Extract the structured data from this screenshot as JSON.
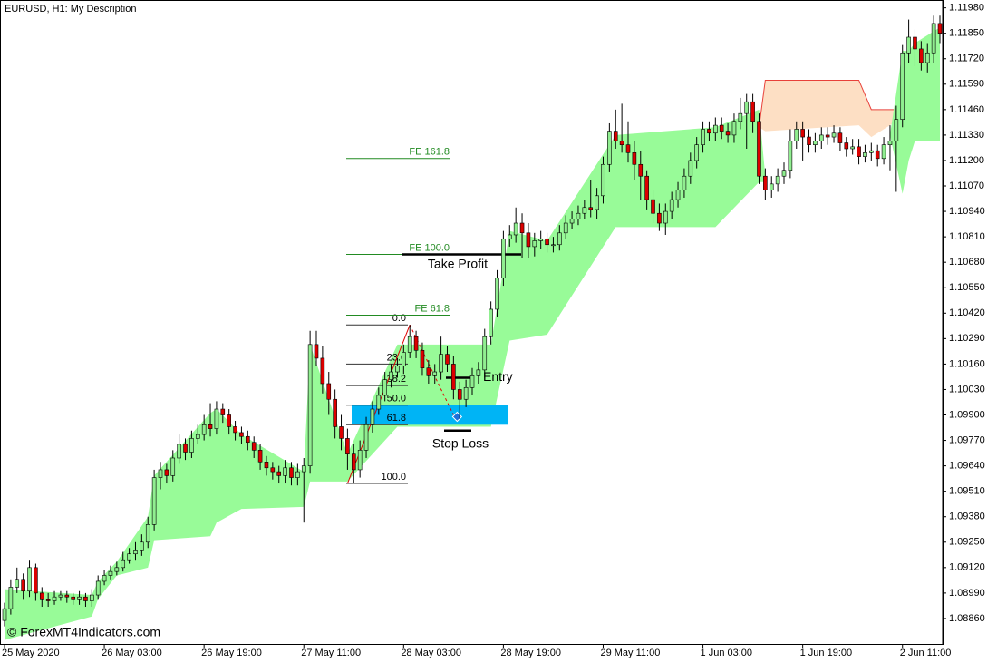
{
  "chart_data": {
    "type": "candlestick",
    "title": "EURUSD, H1:  My Description",
    "watermark": "© ForexMT4Indicators.com",
    "bull_color": "#90ee90",
    "bear_color": "#dc0000",
    "ylim": [
      1.0873,
      1.1202
    ],
    "yticks": [
      {
        "value": 1.1198,
        "label": "1.11980"
      },
      {
        "value": 1.1185,
        "label": "1.11850"
      },
      {
        "value": 1.1172,
        "label": "1.11720"
      },
      {
        "value": 1.1159,
        "label": "1.11590"
      },
      {
        "value": 1.1146,
        "label": "1.11460"
      },
      {
        "value": 1.1133,
        "label": "1.11330"
      },
      {
        "value": 1.112,
        "label": "1.11200"
      },
      {
        "value": 1.1107,
        "label": "1.11070"
      },
      {
        "value": 1.1094,
        "label": "1.10940"
      },
      {
        "value": 1.1081,
        "label": "1.10810"
      },
      {
        "value": 1.1068,
        "label": "1.10680"
      },
      {
        "value": 1.1055,
        "label": "1.10550"
      },
      {
        "value": 1.1042,
        "label": "1.10420"
      },
      {
        "value": 1.1029,
        "label": "1.10290"
      },
      {
        "value": 1.1016,
        "label": "1.10160"
      },
      {
        "value": 1.1003,
        "label": "1.10030"
      },
      {
        "value": 1.099,
        "label": "1.09900"
      },
      {
        "value": 1.0977,
        "label": "1.09770"
      },
      {
        "value": 1.0964,
        "label": "1.09640"
      },
      {
        "value": 1.0951,
        "label": "1.09510"
      },
      {
        "value": 1.0938,
        "label": "1.09380"
      },
      {
        "value": 1.0925,
        "label": "1.09250"
      },
      {
        "value": 1.0912,
        "label": "1.09120"
      },
      {
        "value": 1.0899,
        "label": "1.08990"
      },
      {
        "value": 1.0886,
        "label": "1.08860"
      }
    ],
    "xticks": [
      {
        "value": 0,
        "label": "25 May 2020"
      },
      {
        "value": 16,
        "label": "26 May 03:00"
      },
      {
        "value": 32,
        "label": "26 May 19:00"
      },
      {
        "value": 48,
        "label": "27 May 11:00"
      },
      {
        "value": 64,
        "label": "28 May 03:00"
      },
      {
        "value": 80,
        "label": "28 May 19:00"
      },
      {
        "value": 96,
        "label": "29 May 11:00"
      },
      {
        "value": 112,
        "label": "1 Jun 03:00"
      },
      {
        "value": 128,
        "label": "1 Jun 19:00"
      },
      {
        "value": 144,
        "label": "2 Jun 11:00"
      }
    ],
    "candles": [
      [
        1.0885,
        1.0894,
        1.0882,
        1.0891
      ],
      [
        1.0891,
        1.0906,
        1.0888,
        1.0902
      ],
      [
        1.0902,
        1.0912,
        1.0899,
        1.0906
      ],
      [
        1.0906,
        1.0909,
        1.0896,
        1.09
      ],
      [
        1.09,
        1.0916,
        1.0897,
        1.0912
      ],
      [
        1.0912,
        1.0914,
        1.0895,
        1.0899
      ],
      [
        1.0899,
        1.0902,
        1.0892,
        1.0896
      ],
      [
        1.0896,
        1.0899,
        1.0892,
        1.0895
      ],
      [
        1.0895,
        1.09,
        1.0893,
        1.0897
      ],
      [
        1.0897,
        1.09,
        1.0895,
        1.0898
      ],
      [
        1.0898,
        1.09,
        1.0894,
        1.0897
      ],
      [
        1.0897,
        1.0899,
        1.0893,
        1.0896
      ],
      [
        1.0896,
        1.09,
        1.0893,
        1.0897
      ],
      [
        1.0897,
        1.0899,
        1.0892,
        1.0895
      ],
      [
        1.0895,
        1.0901,
        1.0892,
        1.0898
      ],
      [
        1.0898,
        1.0908,
        1.0896,
        1.0905
      ],
      [
        1.0905,
        1.0911,
        1.0903,
        1.0908
      ],
      [
        1.0908,
        1.0913,
        1.0906,
        1.091
      ],
      [
        1.091,
        1.0915,
        1.0908,
        1.0912
      ],
      [
        1.0912,
        1.092,
        1.091,
        1.0916
      ],
      [
        1.0916,
        1.0922,
        1.0914,
        1.0919
      ],
      [
        1.0919,
        1.0925,
        1.0916,
        1.0921
      ],
      [
        1.0921,
        1.0929,
        1.0918,
        1.0925
      ],
      [
        1.0925,
        1.0938,
        1.0922,
        1.0934
      ],
      [
        1.0934,
        1.0962,
        1.0931,
        1.0958
      ],
      [
        1.0958,
        1.0966,
        1.0952,
        1.0962
      ],
      [
        1.0962,
        1.0965,
        1.0955,
        1.0959
      ],
      [
        1.0959,
        1.0972,
        1.0956,
        1.0968
      ],
      [
        1.0968,
        1.098,
        1.0965,
        1.0975
      ],
      [
        1.0975,
        1.0978,
        1.0967,
        1.0971
      ],
      [
        1.0971,
        1.0982,
        1.0968,
        1.0978
      ],
      [
        1.0978,
        1.0985,
        1.0975,
        1.098
      ],
      [
        1.098,
        1.099,
        1.0977,
        1.0985
      ],
      [
        1.0985,
        1.0996,
        1.0979,
        1.0983
      ],
      [
        1.0983,
        1.0997,
        1.098,
        1.0993
      ],
      [
        1.0993,
        1.0996,
        1.0986,
        1.099
      ],
      [
        1.099,
        1.0993,
        1.098,
        1.0984
      ],
      [
        1.0984,
        1.0987,
        1.0977,
        1.0981
      ],
      [
        1.0981,
        1.0984,
        1.0975,
        1.0979
      ],
      [
        1.0979,
        1.0982,
        1.0972,
        1.0976
      ],
      [
        1.0976,
        1.0979,
        1.0968,
        1.0972
      ],
      [
        1.0972,
        1.0975,
        1.0962,
        1.0966
      ],
      [
        1.0966,
        1.0969,
        1.0959,
        1.0963
      ],
      [
        1.0963,
        1.0966,
        1.0957,
        1.0961
      ],
      [
        1.0961,
        1.0964,
        1.0955,
        1.0959
      ],
      [
        1.0959,
        1.0967,
        1.0955,
        1.0963
      ],
      [
        1.0963,
        1.0966,
        1.0954,
        1.0958
      ],
      [
        1.0958,
        1.0965,
        1.0954,
        1.0961
      ],
      [
        1.0961,
        1.0968,
        1.0935,
        1.0964
      ],
      [
        1.0964,
        1.1033,
        1.096,
        1.1026
      ],
      [
        1.1026,
        1.1033,
        1.1015,
        1.1019
      ],
      [
        1.1019,
        1.1025,
        1.1001,
        1.1006
      ],
      [
        1.1006,
        1.1012,
        1.099,
        1.0998
      ],
      [
        1.0998,
        1.1003,
        1.0978,
        1.0984
      ],
      [
        1.0984,
        1.099,
        1.0972,
        1.0978
      ],
      [
        1.0978,
        1.0983,
        1.0962,
        1.097
      ],
      [
        1.097,
        1.0975,
        1.0955,
        1.0962
      ],
      [
        1.0962,
        1.0977,
        1.0958,
        1.0972
      ],
      [
        1.0972,
        1.0989,
        1.0968,
        1.0985
      ],
      [
        1.0985,
        1.0997,
        1.0981,
        1.0993
      ],
      [
        1.0993,
        1.1004,
        1.099,
        1.1
      ],
      [
        1.1,
        1.1012,
        1.0997,
        1.1008
      ],
      [
        1.1008,
        1.1016,
        1.1004,
        1.1012
      ],
      [
        1.1012,
        1.1019,
        1.1009,
        1.1015
      ],
      [
        1.1015,
        1.1026,
        1.1011,
        1.1022
      ],
      [
        1.1022,
        1.1036,
        1.1019,
        1.103
      ],
      [
        1.103,
        1.1033,
        1.1019,
        1.1023
      ],
      [
        1.1023,
        1.1027,
        1.101,
        1.1014
      ],
      [
        1.1014,
        1.1018,
        1.1006,
        1.101
      ],
      [
        1.101,
        1.1016,
        1.1006,
        1.1012
      ],
      [
        1.1012,
        1.103,
        1.1008,
        1.1021
      ],
      [
        1.1021,
        1.1025,
        1.1012,
        1.1016
      ],
      [
        1.1016,
        1.102,
        1.0998,
        1.1003
      ],
      [
        1.1003,
        1.1007,
        1.0988,
        1.0998
      ],
      [
        1.0998,
        1.1008,
        1.0994,
        1.1004
      ],
      [
        1.1004,
        1.1014,
        1.1,
        1.101
      ],
      [
        1.101,
        1.1017,
        1.1006,
        1.1013
      ],
      [
        1.1013,
        1.1034,
        1.1009,
        1.103
      ],
      [
        1.103,
        1.1048,
        1.1026,
        1.1044
      ],
      [
        1.1044,
        1.1064,
        1.104,
        1.106
      ],
      [
        1.106,
        1.1084,
        1.1056,
        1.108
      ],
      [
        1.108,
        1.1087,
        1.1076,
        1.1082
      ],
      [
        1.1082,
        1.1096,
        1.1078,
        1.1088
      ],
      [
        1.1088,
        1.1093,
        1.107,
        1.1083
      ],
      [
        1.1083,
        1.1088,
        1.107,
        1.1076
      ],
      [
        1.1076,
        1.1083,
        1.1071,
        1.1079
      ],
      [
        1.1079,
        1.1084,
        1.1075,
        1.108
      ],
      [
        1.108,
        1.1083,
        1.1073,
        1.1077
      ],
      [
        1.1077,
        1.1081,
        1.1073,
        1.1077
      ],
      [
        1.1077,
        1.1087,
        1.1074,
        1.1083
      ],
      [
        1.1083,
        1.1092,
        1.108,
        1.1088
      ],
      [
        1.1088,
        1.1094,
        1.1085,
        1.109
      ],
      [
        1.109,
        1.1097,
        1.1087,
        1.1093
      ],
      [
        1.1093,
        1.11,
        1.109,
        1.1096
      ],
      [
        1.1096,
        1.111,
        1.1091,
        1.1095
      ],
      [
        1.1095,
        1.1106,
        1.109,
        1.1102
      ],
      [
        1.1102,
        1.1122,
        1.1098,
        1.1118
      ],
      [
        1.1118,
        1.1139,
        1.1114,
        1.1135
      ],
      [
        1.1135,
        1.1146,
        1.1126,
        1.113
      ],
      [
        1.113,
        1.1149,
        1.1124,
        1.1128
      ],
      [
        1.1128,
        1.114,
        1.1119,
        1.1124
      ],
      [
        1.1124,
        1.113,
        1.111,
        1.1118
      ],
      [
        1.1118,
        1.1125,
        1.11,
        1.1112
      ],
      [
        1.1112,
        1.1115,
        1.1095,
        1.11
      ],
      [
        1.11,
        1.1105,
        1.1088,
        1.1093
      ],
      [
        1.1093,
        1.1098,
        1.1084,
        1.1088
      ],
      [
        1.1088,
        1.1098,
        1.1082,
        1.1094
      ],
      [
        1.1094,
        1.1104,
        1.109,
        1.11
      ],
      [
        1.11,
        1.1109,
        1.1096,
        1.1105
      ],
      [
        1.1105,
        1.1116,
        1.1101,
        1.1112
      ],
      [
        1.1112,
        1.1124,
        1.1108,
        1.112
      ],
      [
        1.112,
        1.1132,
        1.1116,
        1.1128
      ],
      [
        1.1128,
        1.114,
        1.1124,
        1.1136
      ],
      [
        1.1136,
        1.114,
        1.113,
        1.1134
      ],
      [
        1.1134,
        1.1142,
        1.113,
        1.1138
      ],
      [
        1.1138,
        1.1142,
        1.1131,
        1.1135
      ],
      [
        1.1135,
        1.1139,
        1.1129,
        1.1133
      ],
      [
        1.1133,
        1.1144,
        1.1129,
        1.114
      ],
      [
        1.114,
        1.1152,
        1.1136,
        1.1144
      ],
      [
        1.1144,
        1.1154,
        1.1126,
        1.115
      ],
      [
        1.115,
        1.1154,
        1.1134,
        1.114
      ],
      [
        1.114,
        1.1144,
        1.1108,
        1.1112
      ],
      [
        1.1112,
        1.1116,
        1.11,
        1.1105
      ],
      [
        1.1105,
        1.1112,
        1.1101,
        1.1108
      ],
      [
        1.1108,
        1.1116,
        1.1104,
        1.1112
      ],
      [
        1.1112,
        1.1119,
        1.1108,
        1.1115
      ],
      [
        1.1115,
        1.1136,
        1.1111,
        1.113
      ],
      [
        1.113,
        1.114,
        1.1126,
        1.1136
      ],
      [
        1.1136,
        1.114,
        1.112,
        1.1132
      ],
      [
        1.1132,
        1.1136,
        1.1124,
        1.1128
      ],
      [
        1.1128,
        1.1134,
        1.1124,
        1.113
      ],
      [
        1.113,
        1.1137,
        1.1126,
        1.1133
      ],
      [
        1.1133,
        1.1137,
        1.1128,
        1.1132
      ],
      [
        1.1132,
        1.1138,
        1.1129,
        1.1134
      ],
      [
        1.1134,
        1.1137,
        1.1125,
        1.1129
      ],
      [
        1.1129,
        1.1132,
        1.1122,
        1.1126
      ],
      [
        1.1126,
        1.1131,
        1.1123,
        1.1127
      ],
      [
        1.1127,
        1.1131,
        1.1118,
        1.1122
      ],
      [
        1.1122,
        1.1128,
        1.1119,
        1.1124
      ],
      [
        1.1124,
        1.1129,
        1.112,
        1.1125
      ],
      [
        1.1125,
        1.1128,
        1.1117,
        1.1121
      ],
      [
        1.1121,
        1.1132,
        1.1118,
        1.1128
      ],
      [
        1.1128,
        1.1138,
        1.1115,
        1.113
      ],
      [
        1.113,
        1.1148,
        1.1104,
        1.1141
      ],
      [
        1.1141,
        1.1179,
        1.1137,
        1.1175
      ],
      [
        1.1175,
        1.1192,
        1.117,
        1.1183
      ],
      [
        1.1183,
        1.1187,
        1.1168,
        1.1177
      ],
      [
        1.1177,
        1.1181,
        1.1166,
        1.117
      ],
      [
        1.117,
        1.118,
        1.1165,
        1.1175
      ],
      [
        1.1175,
        1.1194,
        1.117,
        1.119
      ],
      [
        1.119,
        1.1194,
        1.118,
        1.1185
      ]
    ],
    "bands": [
      {
        "color": "#98fb98",
        "x": [
          0,
          14,
          15,
          18,
          23,
          24,
          33,
          34,
          38,
          48,
          49,
          55,
          63,
          78,
          81,
          87,
          98,
          114,
          121,
          122
        ],
        "lower": [
          1.0875,
          1.0887,
          1.0896,
          1.0908,
          1.0912,
          1.0926,
          1.0928,
          1.0935,
          1.0942,
          1.0943,
          1.0956,
          1.0956,
          1.0984,
          1.0984,
          1.1028,
          1.1031,
          1.1086,
          1.1086,
          1.1109,
          1.1109
        ],
        "upper": [
          1.0901,
          1.0898,
          1.0905,
          1.0915,
          1.0938,
          1.0959,
          1.0991,
          1.0993,
          1.098,
          1.0961,
          1.1026,
          1.097,
          1.1026,
          1.1026,
          1.1084,
          1.1079,
          1.1133,
          1.1137,
          1.1146,
          1.1112
        ]
      },
      {
        "color": "#fddfc4",
        "edge_color": "#e8413a",
        "x": [
          121,
          122,
          137,
          139,
          143
        ],
        "lower": [
          1.1137,
          1.1135,
          1.1138,
          1.1132,
          1.114
        ],
        "upper": [
          1.1137,
          1.1161,
          1.1161,
          1.1146,
          1.1146
        ]
      },
      {
        "color": "#98fb98",
        "x": [
          142,
          144,
          145,
          146,
          150
        ],
        "lower": [
          1.1133,
          1.1103,
          1.112,
          1.113,
          1.113
        ],
        "upper": [
          1.1133,
          1.1176,
          1.1176,
          1.118,
          1.1188
        ]
      }
    ],
    "fibonacci": {
      "color": "#333333",
      "levels": [
        {
          "label": "0.0",
          "price": 1.1036
        },
        {
          "label": "23.6",
          "price": 1.1016
        },
        {
          "label": "38.2",
          "price": 1.1005
        },
        {
          "label": "50.0",
          "price": 1.0995
        },
        {
          "label": "61.8",
          "price": 1.0985
        },
        {
          "label": "100.0",
          "price": 1.0955
        }
      ]
    },
    "expansion": {
      "color": "#228b22",
      "levels": [
        {
          "label": "FE 161.8",
          "price": 1.1121
        },
        {
          "label": "FE 100.0",
          "price": 1.1072
        },
        {
          "label": "FE 61.8",
          "price": 1.1041
        }
      ]
    },
    "trade": {
      "take_profit": {
        "label": "Take Profit",
        "price": 1.1072
      },
      "entry": {
        "label": "Entry",
        "price": 1.1009
      },
      "stop_loss": {
        "label": "Stop Loss",
        "price": 1.0982
      }
    },
    "zone": {
      "color": "#00b4f5",
      "top": 1.0995,
      "bottom": 1.0985
    },
    "zigzag": {
      "color": "#e00000",
      "x": [
        55,
        65,
        72
      ],
      "y": [
        1.0955,
        1.1036,
        1.099
      ]
    }
  }
}
